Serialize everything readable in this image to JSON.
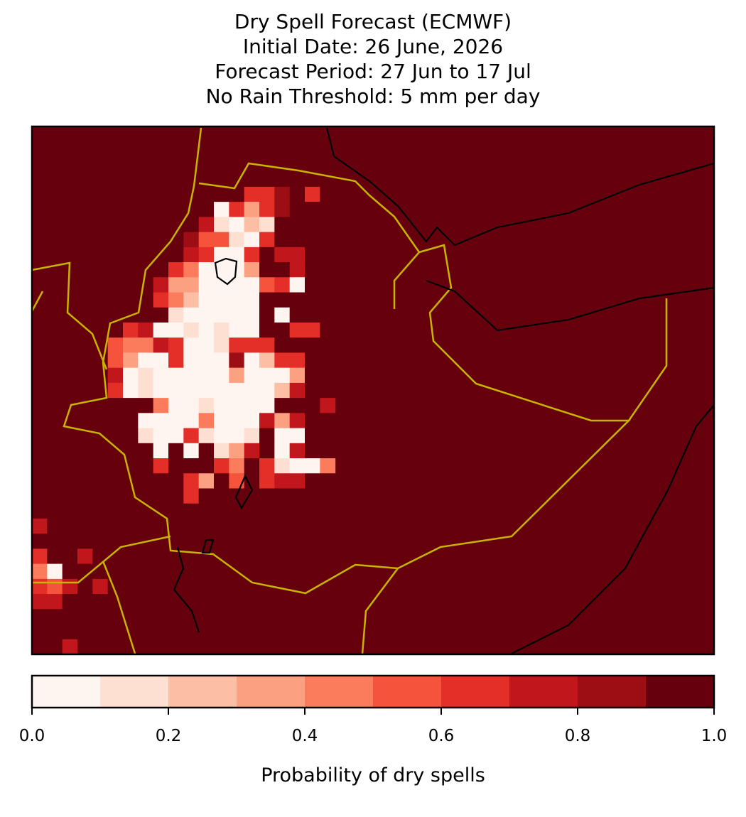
{
  "chart_data": {
    "type": "map",
    "title": [
      "Dry Spell Forecast (ECMWF)",
      "Initial Date: 26 June, 2026",
      "Forecast Period: 27 Jun to 17 Jul",
      "No Rain Threshold: 5 mm per day"
    ],
    "grid": [
      [
        0.95,
        0.95,
        0.95,
        0.95,
        0.95,
        0.95,
        0.95,
        0.95,
        0.95,
        0.95,
        0.95,
        0.95,
        0.95,
        0.95,
        0.95,
        0.95,
        0.95,
        0.95,
        0.95,
        0.95
      ],
      [
        0.95,
        0.95,
        0.95,
        0.95,
        0.95,
        0.95,
        0.95,
        0.95,
        0.95,
        0.95,
        0.95,
        0.95,
        0.95,
        0.95,
        0.95,
        0.95,
        0.95,
        0.95,
        0.95,
        0.95
      ],
      [
        0.95,
        0.95,
        0.95,
        0.95,
        0.95,
        0.95,
        0.95,
        0.95,
        0.95,
        0.95,
        0.95,
        0.95,
        0.95,
        0.95,
        0.95,
        0.95,
        0.95,
        0.95,
        0.95,
        0.95
      ],
      [
        0.95,
        0.95,
        0.95,
        0.95,
        0.95,
        0.95,
        0.95,
        0.95,
        0.95,
        0.95,
        0.95,
        0.95,
        0.95,
        0.95,
        0.95,
        0.95,
        0.95,
        0.95,
        0.95,
        0.95
      ],
      [
        0.95,
        0.95,
        0.95,
        0.95,
        0.95,
        0.95,
        0.95,
        0.95,
        0.95,
        0.95,
        0.95,
        0.95,
        0.95,
        0.95,
        0.65,
        0.65,
        0.85,
        0.95,
        0.65,
        0.95
      ],
      [
        0.95,
        0.95,
        0.95,
        0.95,
        0.95,
        0.95,
        0.95,
        0.95,
        0.95,
        0.95,
        0.95,
        0.95,
        0.05,
        0.65,
        0.35,
        0.65,
        0.85,
        0.95,
        0.95,
        0.95
      ],
      [
        0.95,
        0.95,
        0.95,
        0.95,
        0.95,
        0.95,
        0.95,
        0.95,
        0.95,
        0.95,
        0.95,
        0.75,
        0.15,
        0.05,
        0.25,
        0.15,
        0.95,
        0.95,
        0.95,
        0.95
      ],
      [
        0.95,
        0.95,
        0.95,
        0.95,
        0.95,
        0.95,
        0.95,
        0.95,
        0.95,
        0.95,
        0.85,
        0.55,
        0.55,
        0.15,
        0.05,
        0.65,
        0.95,
        0.95,
        0.95,
        0.95
      ],
      [
        0.95,
        0.95,
        0.95,
        0.95,
        0.95,
        0.95,
        0.95,
        0.95,
        0.95,
        0.95,
        0.75,
        0.65,
        0.05,
        0.05,
        0.65,
        0.95,
        0.75,
        0.75,
        0.95,
        0.95
      ],
      [
        0.95,
        0.95,
        0.95,
        0.95,
        0.95,
        0.95,
        0.95,
        0.95,
        0.95,
        0.65,
        0.45,
        0.05,
        0.05,
        0.05,
        0.35,
        0.95,
        0.95,
        0.75,
        0.95,
        0.95
      ],
      [
        0.95,
        0.95,
        0.95,
        0.95,
        0.95,
        0.95,
        0.95,
        0.95,
        0.75,
        0.35,
        0.35,
        0.05,
        0.05,
        0.05,
        0.05,
        0.55,
        0.65,
        0.05,
        0.95,
        0.95
      ],
      [
        0.95,
        0.95,
        0.95,
        0.95,
        0.95,
        0.95,
        0.95,
        0.95,
        0.65,
        0.45,
        0.25,
        0.05,
        0.05,
        0.05,
        0.05,
        0.95,
        0.95,
        0.95,
        0.95,
        0.95
      ],
      [
        0.95,
        0.95,
        0.95,
        0.95,
        0.95,
        0.95,
        0.95,
        0.95,
        0.95,
        0.15,
        0.05,
        0.05,
        0.05,
        0.05,
        0.05,
        0.95,
        0.05,
        0.95,
        0.95,
        0.95
      ],
      [
        0.95,
        0.95,
        0.95,
        0.95,
        0.95,
        0.95,
        0.65,
        0.75,
        0.05,
        0.05,
        0.15,
        0.05,
        0.15,
        0.05,
        0.05,
        0.95,
        0.95,
        0.65,
        0.65,
        0.95
      ],
      [
        0.95,
        0.95,
        0.95,
        0.95,
        0.95,
        0.55,
        0.45,
        0.45,
        0.75,
        0.65,
        0.05,
        0.05,
        0.15,
        0.65,
        0.65,
        0.65,
        0.95,
        0.95,
        0.95,
        0.95
      ],
      [
        0.95,
        0.95,
        0.95,
        0.95,
        0.95,
        0.55,
        0.35,
        0.05,
        0.05,
        0.65,
        0.05,
        0.05,
        0.05,
        0.85,
        0.05,
        0.25,
        0.65,
        0.65,
        0.95,
        0.95
      ],
      [
        0.95,
        0.95,
        0.95,
        0.95,
        0.95,
        0.75,
        0.05,
        0.15,
        0.05,
        0.05,
        0.05,
        0.05,
        0.05,
        0.35,
        0.05,
        0.05,
        0.05,
        0.35,
        0.95,
        0.95
      ],
      [
        0.95,
        0.95,
        0.95,
        0.95,
        0.95,
        0.65,
        0.05,
        0.15,
        0.05,
        0.05,
        0.05,
        0.05,
        0.05,
        0.05,
        0.05,
        0.05,
        0.25,
        0.75,
        0.95,
        0.95
      ],
      [
        0.95,
        0.95,
        0.95,
        0.95,
        0.95,
        0.95,
        0.95,
        0.95,
        0.45,
        0.05,
        0.05,
        0.15,
        0.05,
        0.05,
        0.05,
        0.05,
        0.95,
        0.95,
        0.95,
        0.75
      ],
      [
        0.95,
        0.95,
        0.95,
        0.95,
        0.95,
        0.95,
        0.95,
        0.05,
        0.05,
        0.05,
        0.05,
        0.45,
        0.05,
        0.05,
        0.05,
        0.75,
        0.35,
        0.75,
        0.95,
        0.95
      ],
      [
        0.95,
        0.95,
        0.95,
        0.95,
        0.95,
        0.95,
        0.95,
        0.15,
        0.05,
        0.05,
        0.65,
        0.15,
        0.05,
        0.05,
        0.15,
        0.95,
        0.05,
        0.05,
        0.95,
        0.95
      ],
      [
        0.95,
        0.95,
        0.95,
        0.95,
        0.95,
        0.95,
        0.95,
        0.95,
        0.05,
        0.95,
        0.05,
        0.95,
        0.15,
        0.35,
        0.75,
        0.95,
        0.05,
        0.75,
        0.95,
        0.95
      ],
      [
        0.95,
        0.95,
        0.95,
        0.95,
        0.95,
        0.95,
        0.95,
        0.95,
        0.65,
        0.95,
        0.95,
        0.95,
        0.65,
        0.45,
        0.95,
        0.65,
        0.15,
        0.05,
        0.05,
        0.45
      ],
      [
        0.95,
        0.95,
        0.95,
        0.95,
        0.95,
        0.95,
        0.95,
        0.95,
        0.95,
        0.95,
        0.65,
        0.35,
        0.95,
        0.55,
        0.95,
        0.65,
        0.75,
        0.75,
        0.95,
        0.95
      ],
      [
        0.95,
        0.95,
        0.95,
        0.95,
        0.95,
        0.95,
        0.95,
        0.95,
        0.95,
        0.95,
        0.65,
        0.95,
        0.95,
        0.95,
        0.95,
        0.95,
        0.95,
        0.95,
        0.95,
        0.95
      ],
      [
        0.95,
        0.95,
        0.95,
        0.95,
        0.95,
        0.95,
        0.95,
        0.95,
        0.95,
        0.95,
        0.95,
        0.95,
        0.95,
        0.95,
        0.95,
        0.95,
        0.95,
        0.95,
        0.95,
        0.95
      ],
      [
        0.75,
        0.95,
        0.95,
        0.95,
        0.95,
        0.95,
        0.95,
        0.95,
        0.95,
        0.95,
        0.95,
        0.95,
        0.95,
        0.95,
        0.95,
        0.95,
        0.95,
        0.95,
        0.95,
        0.95
      ],
      [
        0.95,
        0.95,
        0.95,
        0.95,
        0.95,
        0.95,
        0.95,
        0.95,
        0.95,
        0.95,
        0.95,
        0.95,
        0.95,
        0.95,
        0.95,
        0.95,
        0.95,
        0.95,
        0.95,
        0.95
      ],
      [
        0.65,
        0.95,
        0.95,
        0.75,
        0.95,
        0.95,
        0.95,
        0.95,
        0.95,
        0.95,
        0.95,
        0.95,
        0.95,
        0.95,
        0.95,
        0.95,
        0.95,
        0.95,
        0.95,
        0.95
      ],
      [
        0.45,
        0.05,
        0.95,
        0.95,
        0.95,
        0.95,
        0.95,
        0.95,
        0.95,
        0.95,
        0.95,
        0.95,
        0.95,
        0.95,
        0.95,
        0.95,
        0.95,
        0.95,
        0.95,
        0.95
      ],
      [
        0.65,
        0.55,
        0.75,
        0.95,
        0.75,
        0.95,
        0.95,
        0.95,
        0.95,
        0.95,
        0.95,
        0.95,
        0.95,
        0.95,
        0.95,
        0.95,
        0.95,
        0.95,
        0.95,
        0.95
      ],
      [
        0.75,
        0.75,
        0.95,
        0.95,
        0.95,
        0.95,
        0.95,
        0.95,
        0.95,
        0.95,
        0.95,
        0.95,
        0.95,
        0.95,
        0.95,
        0.95,
        0.95,
        0.95,
        0.95,
        0.95
      ],
      [
        0.95,
        0.95,
        0.95,
        0.95,
        0.95,
        0.95,
        0.95,
        0.95,
        0.95,
        0.95,
        0.95,
        0.95,
        0.95,
        0.95,
        0.95,
        0.95,
        0.95,
        0.95,
        0.95,
        0.95
      ],
      [
        0.95,
        0.95,
        0.95,
        0.95,
        0.95,
        0.95,
        0.95,
        0.95,
        0.95,
        0.95,
        0.95,
        0.95,
        0.95,
        0.95,
        0.95,
        0.95,
        0.95,
        0.95,
        0.95,
        0.95
      ],
      [
        0.95,
        0.95,
        0.75,
        0.95,
        0.95,
        0.95,
        0.95,
        0.95,
        0.95,
        0.95,
        0.95,
        0.95,
        0.95,
        0.95,
        0.95,
        0.95,
        0.95,
        0.95,
        0.95,
        0.95
      ]
    ],
    "colorbar": {
      "bounds": [
        0,
        0.1,
        0.2,
        0.3,
        0.4,
        0.5,
        0.6,
        0.7,
        0.8,
        0.9,
        1
      ],
      "colors": [
        "#fff5f0",
        "#fee0d3",
        "#fcbea5",
        "#fca082",
        "#fb7c5c",
        "#f5533b",
        "#e32f27",
        "#c1161b",
        "#9c0d14",
        "#67000d"
      ],
      "ticks": [
        {
          "value": 0,
          "label": "0.0"
        },
        0.2,
        0.4,
        0.6,
        0.8,
        {
          "value": 1,
          "label": "1.0"
        }
      ],
      "label": "Probability of dry spells"
    }
  }
}
